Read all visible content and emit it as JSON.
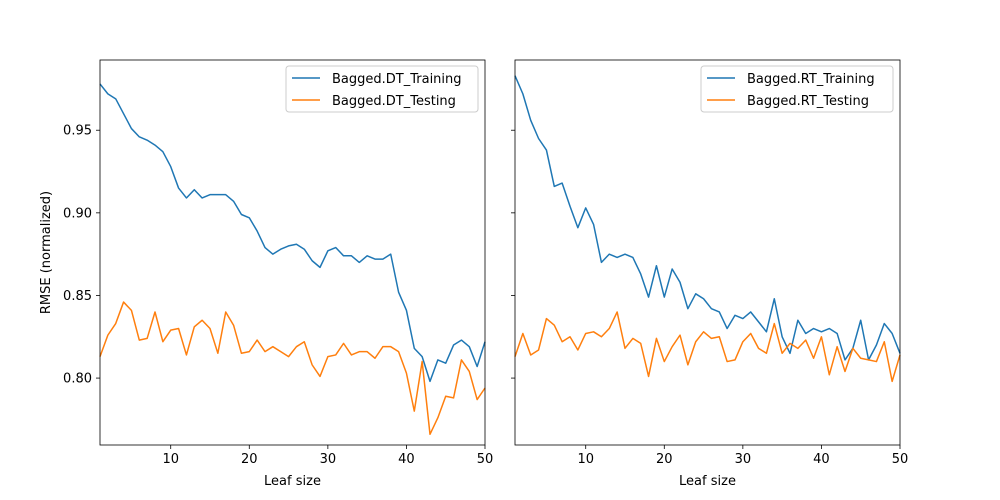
{
  "chart_data": [
    {
      "type": "line",
      "xlabel": "Leaf size",
      "ylabel": "RMSE (normalized)",
      "xlim": [
        1,
        50
      ],
      "ylim": [
        0.7595,
        0.9925
      ],
      "xticks": [
        10,
        20,
        30,
        40,
        50
      ],
      "yticks": [
        0.8,
        0.85,
        0.9,
        0.95
      ],
      "ytick_labels": [
        "0.80",
        "0.85",
        "0.90",
        "0.95"
      ],
      "grid": false,
      "legend_position": "top-right",
      "x": [
        1,
        2,
        3,
        4,
        5,
        6,
        7,
        8,
        9,
        10,
        11,
        12,
        13,
        14,
        15,
        16,
        17,
        18,
        19,
        20,
        21,
        22,
        23,
        24,
        25,
        26,
        27,
        28,
        29,
        30,
        31,
        32,
        33,
        34,
        35,
        36,
        37,
        38,
        39,
        40,
        41,
        42,
        43,
        44,
        45,
        46,
        47,
        48,
        49,
        50
      ],
      "series": [
        {
          "name": "Bagged.DT_Training",
          "color": "#1f77b4",
          "values": [
            0.978,
            0.972,
            0.969,
            0.96,
            0.951,
            0.946,
            0.944,
            0.941,
            0.937,
            0.928,
            0.915,
            0.909,
            0.914,
            0.909,
            0.911,
            0.911,
            0.911,
            0.907,
            0.899,
            0.897,
            0.889,
            0.879,
            0.875,
            0.878,
            0.88,
            0.881,
            0.878,
            0.871,
            0.867,
            0.877,
            0.879,
            0.874,
            0.874,
            0.87,
            0.874,
            0.872,
            0.872,
            0.875,
            0.852,
            0.841,
            0.818,
            0.813,
            0.798,
            0.811,
            0.809,
            0.82,
            0.823,
            0.819,
            0.807,
            0.822
          ]
        },
        {
          "name": "Bagged.DT_Testing",
          "color": "#ff7f0e",
          "values": [
            0.813,
            0.826,
            0.833,
            0.846,
            0.841,
            0.823,
            0.824,
            0.84,
            0.822,
            0.829,
            0.83,
            0.814,
            0.831,
            0.835,
            0.83,
            0.815,
            0.84,
            0.832,
            0.815,
            0.816,
            0.823,
            0.816,
            0.819,
            0.816,
            0.813,
            0.819,
            0.822,
            0.808,
            0.801,
            0.813,
            0.814,
            0.821,
            0.814,
            0.816,
            0.816,
            0.812,
            0.819,
            0.819,
            0.816,
            0.803,
            0.78,
            0.81,
            0.766,
            0.776,
            0.789,
            0.788,
            0.811,
            0.804,
            0.787,
            0.794
          ]
        }
      ]
    },
    {
      "type": "line",
      "xlabel": "Leaf size",
      "ylabel": "",
      "xlim": [
        1,
        50
      ],
      "ylim": [
        0.7595,
        0.9925
      ],
      "xticks": [
        10,
        20,
        30,
        40,
        50
      ],
      "yticks": [
        0.8,
        0.85,
        0.9,
        0.95
      ],
      "ytick_labels": [],
      "grid": false,
      "legend_position": "top-right",
      "x": [
        1,
        2,
        3,
        4,
        5,
        6,
        7,
        8,
        9,
        10,
        11,
        12,
        13,
        14,
        15,
        16,
        17,
        18,
        19,
        20,
        21,
        22,
        23,
        24,
        25,
        26,
        27,
        28,
        29,
        30,
        31,
        32,
        33,
        34,
        35,
        36,
        37,
        38,
        39,
        40,
        41,
        42,
        43,
        44,
        45,
        46,
        47,
        48,
        49,
        50
      ],
      "series": [
        {
          "name": "Bagged.RT_Training",
          "color": "#1f77b4",
          "values": [
            0.983,
            0.972,
            0.956,
            0.945,
            0.938,
            0.916,
            0.918,
            0.904,
            0.891,
            0.903,
            0.893,
            0.87,
            0.875,
            0.873,
            0.875,
            0.873,
            0.863,
            0.849,
            0.868,
            0.849,
            0.866,
            0.858,
            0.842,
            0.851,
            0.848,
            0.842,
            0.84,
            0.83,
            0.838,
            0.836,
            0.84,
            0.834,
            0.828,
            0.848,
            0.825,
            0.815,
            0.835,
            0.827,
            0.83,
            0.828,
            0.83,
            0.827,
            0.811,
            0.818,
            0.835,
            0.811,
            0.82,
            0.833,
            0.827,
            0.815
          ]
        },
        {
          "name": "Bagged.RT_Testing",
          "color": "#ff7f0e",
          "values": [
            0.813,
            0.827,
            0.814,
            0.817,
            0.836,
            0.832,
            0.822,
            0.825,
            0.817,
            0.827,
            0.828,
            0.825,
            0.83,
            0.84,
            0.818,
            0.824,
            0.821,
            0.801,
            0.824,
            0.81,
            0.819,
            0.826,
            0.808,
            0.822,
            0.828,
            0.824,
            0.825,
            0.81,
            0.811,
            0.822,
            0.827,
            0.818,
            0.815,
            0.833,
            0.815,
            0.821,
            0.818,
            0.823,
            0.812,
            0.825,
            0.802,
            0.819,
            0.804,
            0.818,
            0.812,
            0.811,
            0.81,
            0.822,
            0.798,
            0.814
          ]
        }
      ]
    }
  ]
}
